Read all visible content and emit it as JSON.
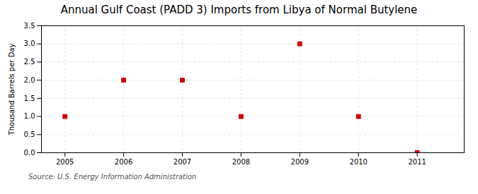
{
  "chart_data": {
    "type": "scatter",
    "title": "Annual Gulf Coast (PADD 3) Imports from Libya of Normal Butylene",
    "ylabel": "Thousand Barrels per Day",
    "source": "Source: U.S. Energy Information Administration",
    "x": [
      2005,
      2006,
      2007,
      2008,
      2009,
      2010,
      2011
    ],
    "values": [
      1.0,
      2.0,
      2.0,
      1.0,
      3.0,
      1.0,
      0.0
    ],
    "color": "#cc0000",
    "marker": "square",
    "xlim": [
      2004.6,
      2011.8
    ],
    "xticks": [
      2005,
      2006,
      2007,
      2008,
      2009,
      2010,
      2011
    ],
    "ylim": [
      0.0,
      3.5
    ],
    "yticks": [
      {
        "value": 0.0,
        "label": "0.0"
      },
      0.5,
      {
        "value": 1.0,
        "label": "1.0"
      },
      1.5,
      {
        "value": 2.0,
        "label": "2.0"
      },
      2.5,
      {
        "value": 3.0,
        "label": "3.0"
      },
      3.5
    ],
    "grid": true
  }
}
